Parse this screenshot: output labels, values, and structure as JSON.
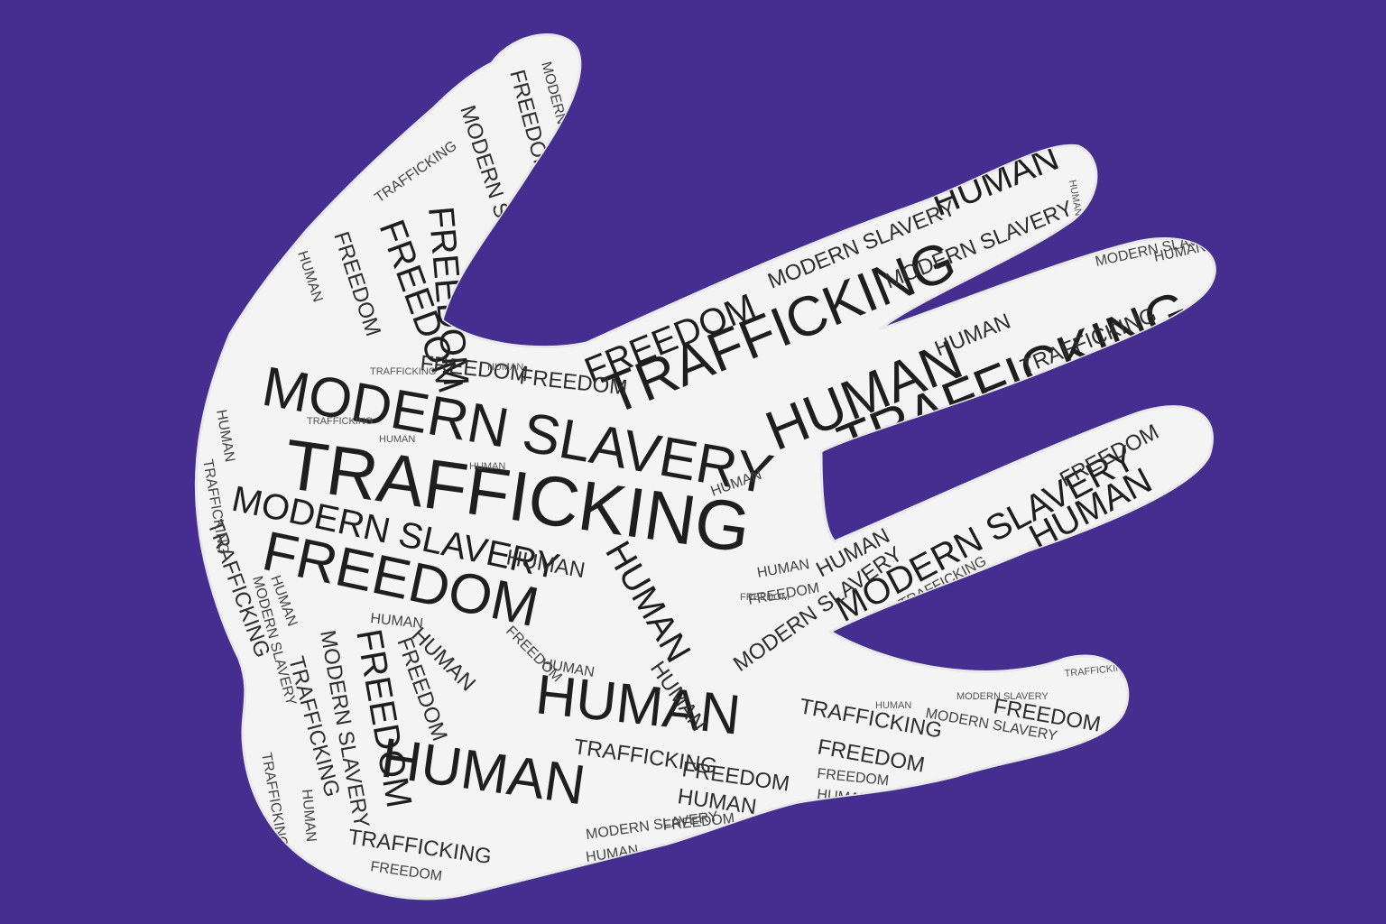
{
  "background_color": "#452e90",
  "hand_color": "#f4f4f4",
  "text_color": "#1e1e1e",
  "words": {
    "trafficking": "TRAFFICKING",
    "modern_slavery": "MODERN SLAVERY",
    "freedom": "FREEDOM",
    "human": "HUMAN"
  }
}
